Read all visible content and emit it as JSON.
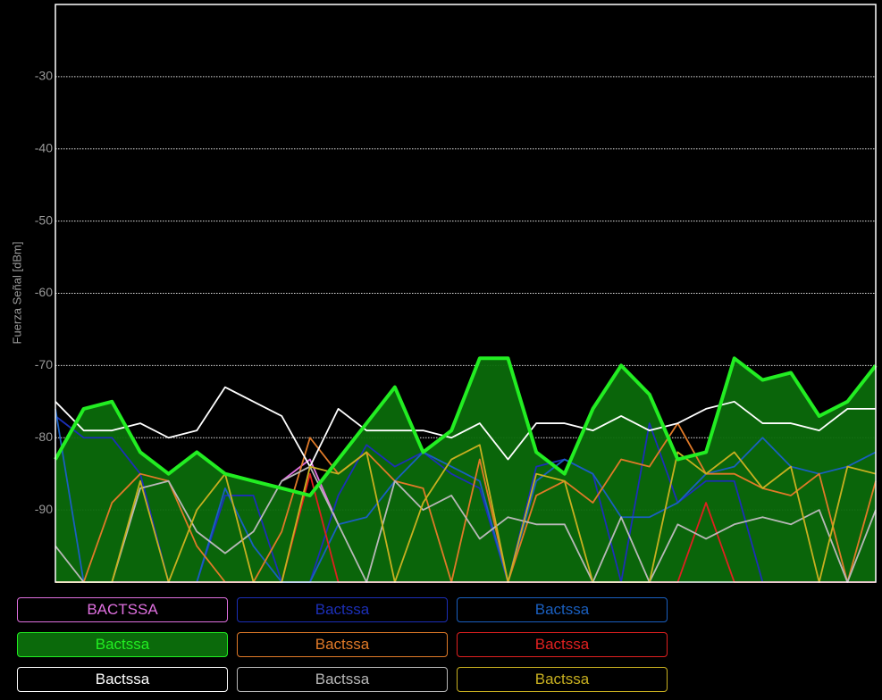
{
  "chart_data": {
    "type": "line",
    "y_label": "Fuerza Señal [dBm]",
    "ylim": [
      -100,
      -20
    ],
    "yticks": [
      -30,
      -40,
      -50,
      -60,
      -70,
      -80,
      -90
    ],
    "grid": true,
    "series": [
      {
        "name": "BACTSSA",
        "color": "#e070e0",
        "filled": false,
        "values": [
          null,
          null,
          null,
          null,
          null,
          null,
          null,
          null,
          -86,
          -83,
          -92,
          null,
          null,
          null,
          null,
          null,
          null,
          null,
          null,
          null,
          null,
          null,
          null,
          null,
          null,
          null,
          null,
          null,
          null,
          null
        ]
      },
      {
        "name": "Bactssa",
        "color": "#1c2fb8",
        "filled": false,
        "values": [
          -77,
          -80,
          -80,
          -85,
          -100,
          -100,
          -88,
          -88,
          -100,
          -100,
          -88,
          -81,
          -84,
          -82,
          -85,
          -87,
          -100,
          -84,
          -83,
          -85,
          -100,
          -78,
          -89,
          -86,
          -86,
          -100,
          -100,
          -100,
          -100,
          -100
        ]
      },
      {
        "name": "Bactssa",
        "color": "#1a5fc0",
        "filled": false,
        "values": [
          -76,
          -100,
          -100,
          -100,
          -100,
          -100,
          -87,
          -95,
          -100,
          -100,
          -92,
          -91,
          -86,
          -82,
          -84,
          -86,
          -100,
          -86,
          -83,
          -85,
          -91,
          -91,
          -89,
          -85,
          -84,
          -80,
          -84,
          -85,
          -84,
          -82
        ]
      },
      {
        "name": "Bactssa",
        "color": "#22ee22",
        "filled": true,
        "values": [
          -83,
          -76,
          -75,
          -82,
          -85,
          -82,
          -85,
          -86,
          -87,
          -88,
          -83,
          -78,
          -73,
          -82,
          -79,
          -69,
          -69,
          -82,
          -85,
          -76,
          -70,
          -74,
          -83,
          -82,
          -69,
          -72,
          -71,
          -77,
          -75,
          -70
        ]
      },
      {
        "name": "Bactssa",
        "color": "#e07a28",
        "filled": false,
        "values": [
          -100,
          -100,
          -89,
          -85,
          -86,
          -95,
          -100,
          -100,
          -93,
          -80,
          -85,
          -82,
          -86,
          -87,
          -100,
          -83,
          -100,
          -88,
          -86,
          -89,
          -83,
          -84,
          -78,
          -85,
          -85,
          -87,
          -88,
          -85,
          -100,
          -86
        ]
      },
      {
        "name": "Bactssa",
        "color": "#e02020",
        "filled": false,
        "values": [
          -100,
          -100,
          -100,
          -100,
          -100,
          -100,
          -100,
          -100,
          -100,
          -85,
          -100,
          -100,
          -100,
          -100,
          -100,
          -100,
          -100,
          -100,
          -100,
          -100,
          -100,
          -100,
          -100,
          -89,
          -100,
          -100,
          -100,
          -100,
          -100,
          -100
        ]
      },
      {
        "name": "Bactssa",
        "color": "#ffffff",
        "filled": false,
        "values": [
          -75,
          -79,
          -79,
          -78,
          -80,
          -79,
          -73,
          -75,
          -77,
          -84,
          -76,
          -79,
          -79,
          -79,
          -80,
          -78,
          -83,
          -78,
          -78,
          -79,
          -77,
          -79,
          -78,
          -76,
          -75,
          -78,
          -78,
          -79,
          -76,
          -76
        ]
      },
      {
        "name": "Bactssa",
        "color": "#b8b8b8",
        "filled": false,
        "values": [
          -95,
          -100,
          -100,
          -87,
          -86,
          -93,
          -96,
          -93,
          -86,
          -84,
          -92,
          -100,
          -86,
          -90,
          -88,
          -94,
          -91,
          -92,
          -92,
          -100,
          -91,
          -100,
          -92,
          -94,
          -92,
          -91,
          -92,
          -90,
          -100,
          -90
        ]
      },
      {
        "name": "Bactssa",
        "color": "#c8b020",
        "filled": false,
        "values": [
          -100,
          -100,
          -100,
          -86,
          -100,
          -90,
          -85,
          -100,
          -100,
          -84,
          -85,
          -82,
          -100,
          -89,
          -83,
          -81,
          -100,
          -85,
          -86,
          -100,
          -100,
          -100,
          -82,
          -85,
          -82,
          -87,
          -84,
          -100,
          -84,
          -85
        ]
      }
    ]
  }
}
